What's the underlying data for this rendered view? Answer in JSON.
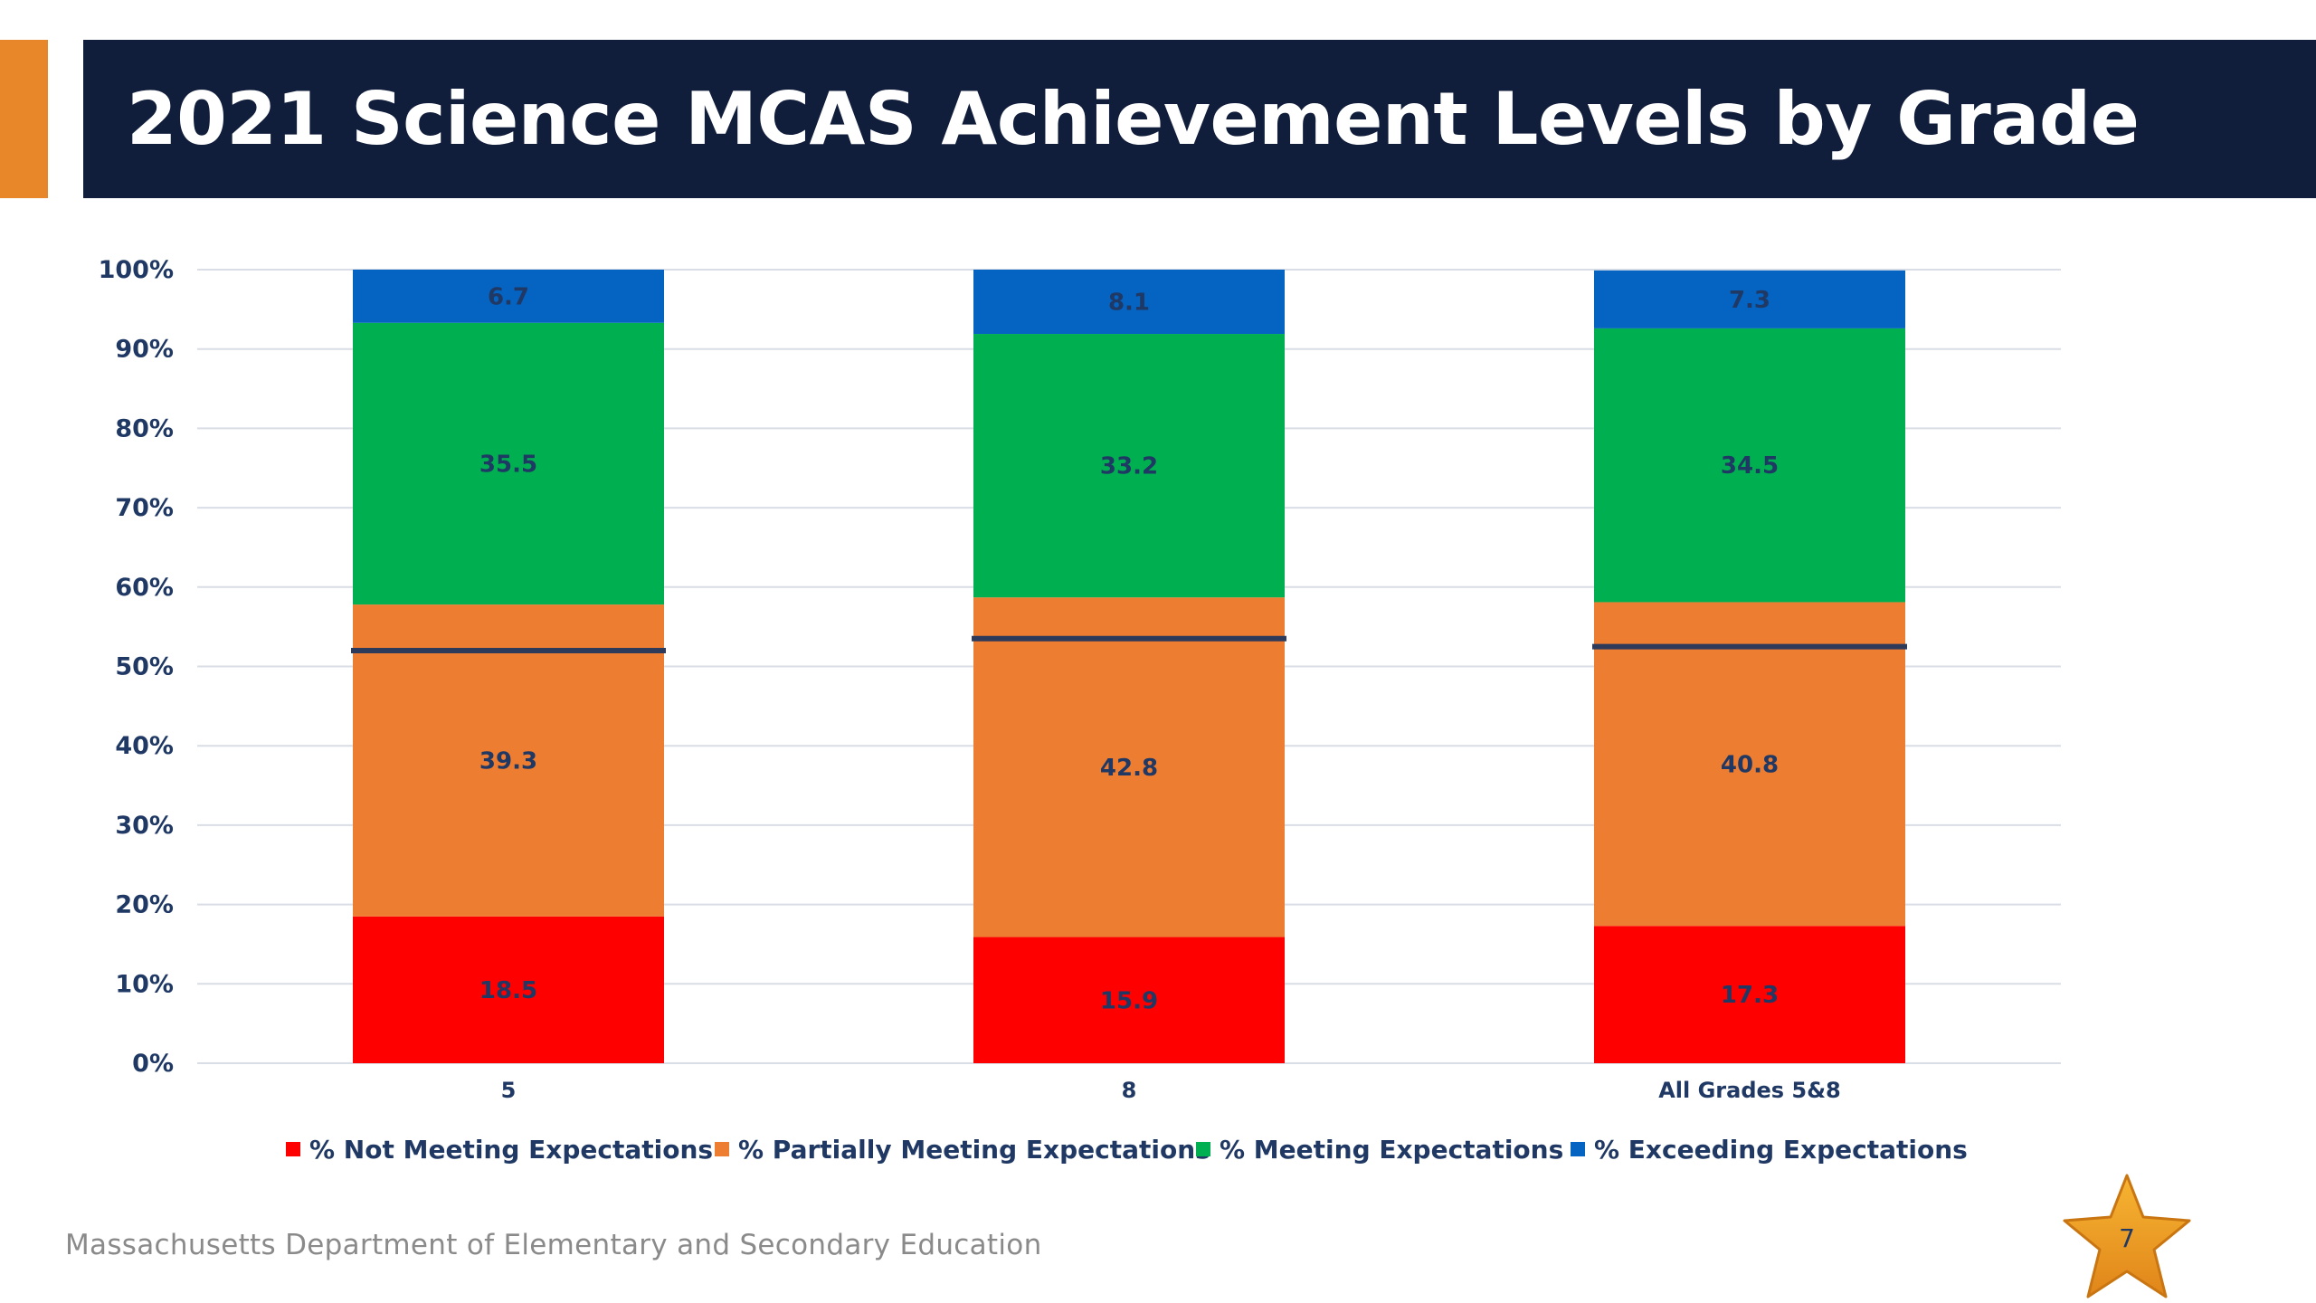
{
  "slide": {
    "title": "2021 Science MCAS Achievement Levels by Grade",
    "footer": "Massachusetts Department of Elementary and Secondary Education",
    "page_number": "7"
  },
  "colors": {
    "title_bar": "#101d3b",
    "accent": "#e8862a",
    "not_meeting": "#ff0000",
    "partially_meeting": "#ed7d31",
    "meeting": "#00b050",
    "exceeding": "#0563c1",
    "reference_line": "#2e3a59",
    "label_text": "#1f3864"
  },
  "chart_data": {
    "type": "bar",
    "stacked": true,
    "categories": [
      "5",
      "8",
      "All Grades 5&8"
    ],
    "series": [
      {
        "name": "% Not Meeting Expectations",
        "color": "#ff0000",
        "values": [
          18.5,
          15.9,
          17.3
        ]
      },
      {
        "name": "% Partially Meeting Expectations",
        "color": "#ed7d31",
        "values": [
          39.3,
          42.8,
          40.8
        ]
      },
      {
        "name": "% Meeting Expectations",
        "color": "#00b050",
        "values": [
          35.5,
          33.2,
          34.5
        ]
      },
      {
        "name": "% Exceeding Expectations",
        "color": "#0563c1",
        "values": [
          6.7,
          8.1,
          7.3
        ]
      }
    ],
    "reference_line_values": [
      52,
      53.5,
      52.5
    ],
    "yticks": [
      "0%",
      "10%",
      "20%",
      "30%",
      "40%",
      "50%",
      "60%",
      "70%",
      "80%",
      "90%",
      "100%"
    ],
    "ylim": [
      0,
      100
    ],
    "grid": true,
    "legend_position": "bottom"
  }
}
